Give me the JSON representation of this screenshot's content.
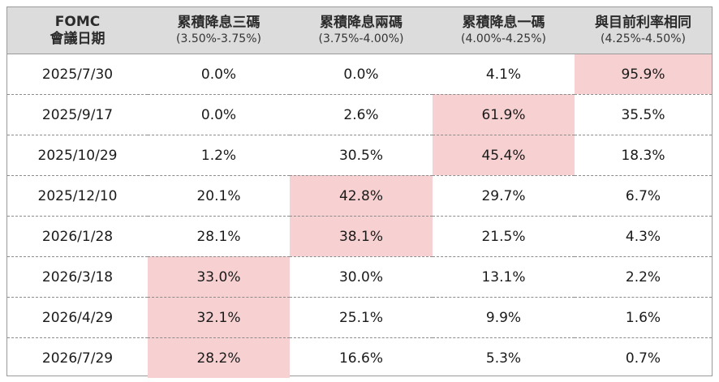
{
  "chart_data": {
    "type": "table",
    "header": {
      "meeting_col": {
        "line1": "FOMC",
        "line2": "會議日期"
      },
      "columns": [
        {
          "name": "累積降息三碼",
          "range": "(3.50%-3.75%)"
        },
        {
          "name": "累積降息兩碼",
          "range": "(3.75%-4.00%)"
        },
        {
          "name": "累積降息一碼",
          "range": "(4.00%-4.25%)"
        },
        {
          "name": "與目前利率相同",
          "range": "(4.25%-4.50%)"
        }
      ]
    },
    "rows": [
      {
        "date": "2025/7/30",
        "values": [
          "0.0%",
          "0.0%",
          "4.1%",
          "95.9%"
        ],
        "highlight": 3
      },
      {
        "date": "2025/9/17",
        "values": [
          "0.0%",
          "2.6%",
          "61.9%",
          "35.5%"
        ],
        "highlight": 2
      },
      {
        "date": "2025/10/29",
        "values": [
          "1.2%",
          "30.5%",
          "45.4%",
          "18.3%"
        ],
        "highlight": 2
      },
      {
        "date": "2025/12/10",
        "values": [
          "20.1%",
          "42.8%",
          "29.7%",
          "6.7%"
        ],
        "highlight": 1
      },
      {
        "date": "2026/1/28",
        "values": [
          "28.1%",
          "38.1%",
          "21.5%",
          "4.3%"
        ],
        "highlight": 1
      },
      {
        "date": "2026/3/18",
        "values": [
          "33.0%",
          "30.0%",
          "13.1%",
          "2.2%"
        ],
        "highlight": 0
      },
      {
        "date": "2026/4/29",
        "values": [
          "32.1%",
          "25.1%",
          "9.9%",
          "1.6%"
        ],
        "highlight": 0
      },
      {
        "date": "2026/7/29",
        "values": [
          "28.2%",
          "16.6%",
          "5.3%",
          "0.7%"
        ],
        "highlight": 0
      }
    ],
    "colors": {
      "header_bg": "#dcdcdc",
      "highlight_bg": "#f7d1d1",
      "border": "#9a9a9a"
    }
  }
}
